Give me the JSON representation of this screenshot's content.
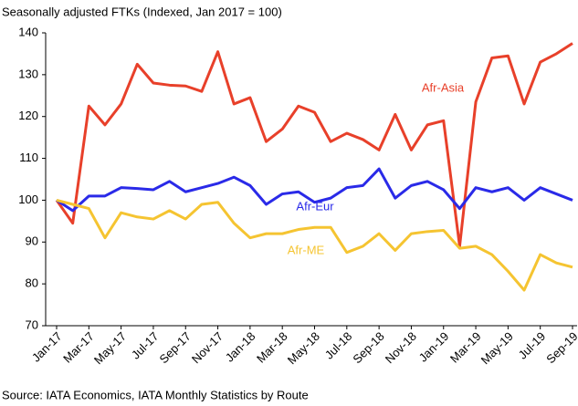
{
  "chart_data": {
    "type": "line",
    "title": "Seasonally adjusted FTKs (Indexed, Jan 2017 = 100)",
    "source": "Source: IATA Economics, IATA Monthly Statistics by Route",
    "categories": [
      "Jan-17",
      null,
      "Mar-17",
      null,
      "May-17",
      null,
      "Jul-17",
      null,
      "Sep-17",
      null,
      "Nov-17",
      null,
      "Jan-18",
      null,
      "Mar-18",
      null,
      "May-18",
      null,
      "Jul-18",
      null,
      "Sep-18",
      null,
      "Nov-18",
      null,
      "Jan-19",
      null,
      "Mar-19",
      null,
      "May-19",
      null,
      "Jul-19",
      null,
      "Sep-19"
    ],
    "series": [
      {
        "name": "Afr-Asia",
        "color": "#e8402a",
        "values": [
          100,
          94.5,
          122.5,
          118,
          123,
          132.5,
          128,
          127.5,
          127.3,
          126,
          135.5,
          123,
          124.5,
          114,
          117,
          122.5,
          121,
          114,
          116,
          114.5,
          112,
          120.5,
          112,
          118,
          119,
          89,
          123.5,
          134,
          134.5,
          123,
          133,
          135,
          137.5
        ]
      },
      {
        "name": "Afr-Eur",
        "color": "#2a2ae8",
        "values": [
          100,
          97.5,
          101,
          101,
          103,
          102.8,
          102.5,
          104.5,
          102,
          103,
          104,
          105.5,
          103.5,
          99,
          101.5,
          102,
          99.5,
          100.5,
          103,
          103.5,
          107.5,
          100.5,
          103.5,
          104.5,
          102.5,
          98,
          103,
          102,
          103,
          100,
          103,
          101.5,
          100
        ]
      },
      {
        "name": "Afr-ME",
        "color": "#f5c431",
        "values": [
          100,
          99,
          98,
          91,
          97,
          96,
          95.5,
          97.5,
          95.5,
          99,
          99.5,
          94.5,
          91,
          92,
          92,
          93,
          93.5,
          93.5,
          87.5,
          89,
          92,
          88,
          92,
          92.5,
          92.8,
          88.5,
          89,
          87,
          83,
          78.5,
          87,
          85,
          84
        ]
      }
    ],
    "ylim": [
      70,
      140
    ],
    "yticks": [
      70,
      80,
      90,
      100,
      110,
      120,
      130,
      140
    ]
  }
}
